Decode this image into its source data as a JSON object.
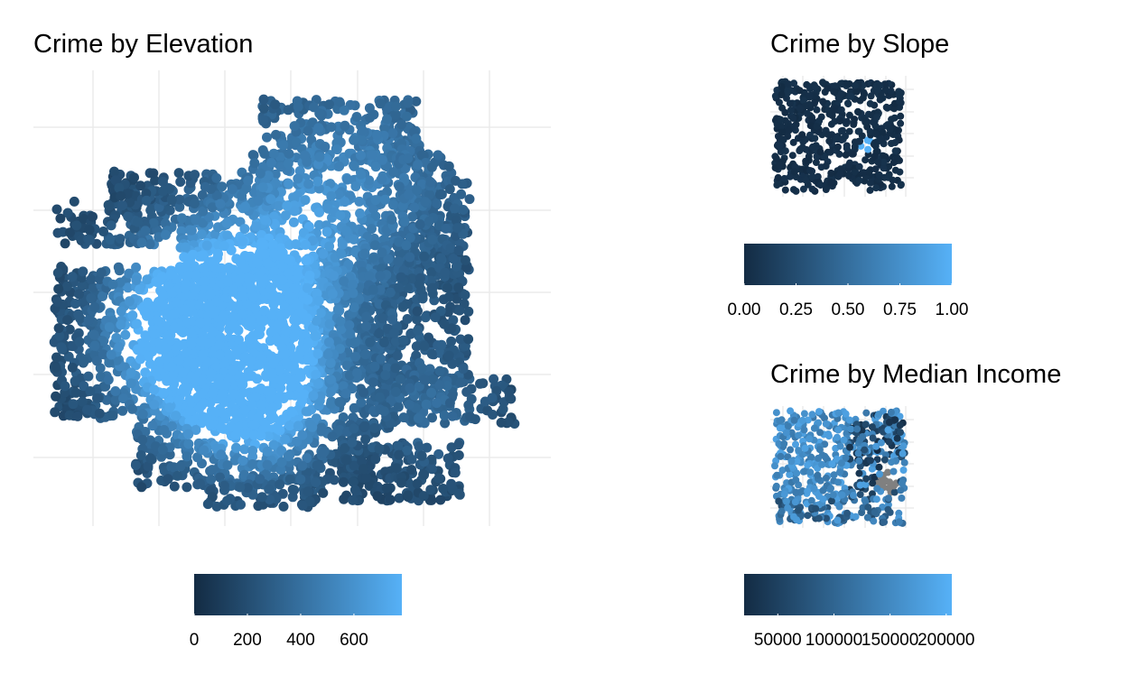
{
  "chart_data": [
    {
      "type": "heatmap",
      "title": "Crime by Elevation",
      "xlabel": "",
      "ylabel": "",
      "legend": {
        "placement": "bottom",
        "min": 0,
        "max": 780,
        "ticks": [
          0,
          200,
          400,
          600
        ],
        "tick_labels": [
          "0",
          "200",
          "400",
          "600"
        ],
        "low_color": "#132B43",
        "high_color": "#56B1F7"
      }
    },
    {
      "type": "heatmap",
      "title": "Crime by Slope",
      "xlabel": "",
      "ylabel": "",
      "legend": {
        "placement": "bottom",
        "min": 0,
        "max": 1,
        "ticks": [
          0,
          0.25,
          0.5,
          0.75,
          1
        ],
        "tick_labels": [
          "0.00",
          "0.25",
          "0.50",
          "0.75",
          "1.00"
        ],
        "low_color": "#132B43",
        "high_color": "#56B1F7"
      }
    },
    {
      "type": "heatmap",
      "title": "Crime by Median Income",
      "xlabel": "",
      "ylabel": "",
      "legend": {
        "placement": "bottom",
        "min": 20000,
        "max": 205000,
        "ticks": [
          50000,
          100000,
          150000,
          200000
        ],
        "tick_labels": [
          "50000",
          "100000",
          "150000",
          "200000"
        ],
        "low_color": "#132B43",
        "high_color": "#56B1F7",
        "na_color": "#808080"
      }
    }
  ]
}
